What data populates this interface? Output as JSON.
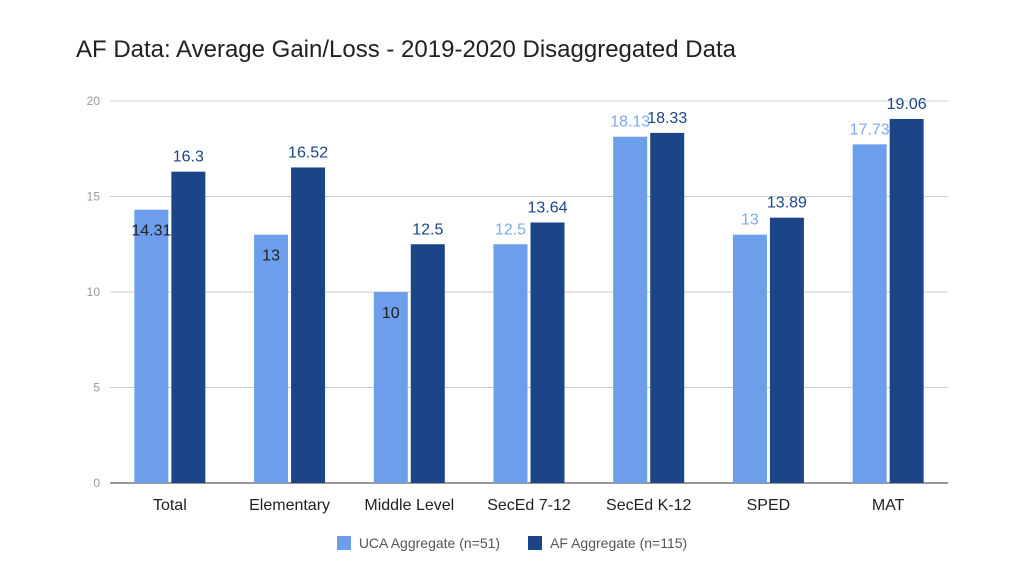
{
  "chart_data": {
    "type": "bar",
    "title": "AF Data: Average Gain/Loss - 2019-2020 Disaggregated Data",
    "categories": [
      "Total",
      "Elementary",
      "Middle Level",
      "SecEd 7-12",
      "SecEd K-12",
      "SPED",
      "MAT"
    ],
    "series": [
      {
        "name": "UCA Aggregate (n=51)",
        "color": "#6d9eeb",
        "values": [
          14.31,
          13,
          10,
          12.5,
          18.13,
          13,
          17.73
        ],
        "labels": [
          "14.31",
          "13",
          "10",
          "12.5",
          "18.13",
          "13",
          "17.73"
        ]
      },
      {
        "name": "AF Aggregate (n=115)",
        "color": "#1c4587",
        "values": [
          16.3,
          16.52,
          12.5,
          13.64,
          18.33,
          13.89,
          19.06
        ],
        "labels": [
          "16.3",
          "16.52",
          "12.5",
          "13.64",
          "18.33",
          "13.89",
          "19.06"
        ]
      }
    ],
    "yticks": [
      "0",
      "5",
      "10",
      "15",
      "20"
    ],
    "ylim": [
      0,
      20
    ],
    "xlabel": "",
    "ylabel": "",
    "grid": true,
    "legend": "bottom"
  }
}
